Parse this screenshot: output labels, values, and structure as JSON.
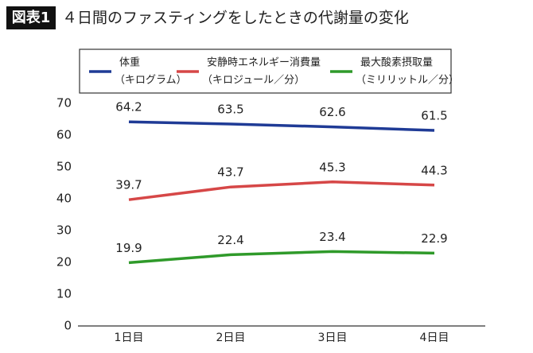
{
  "chart_data": {
    "type": "line",
    "label": "図表1",
    "title": "４日間のファスティングをしたときの代謝量の変化",
    "categories": [
      "1日目",
      "2日目",
      "3日目",
      "4日目"
    ],
    "series": [
      {
        "name": "体重",
        "unit": "（キログラム）",
        "color": "#1f3b96",
        "values": [
          64.2,
          63.5,
          62.6,
          61.5
        ]
      },
      {
        "name": "安静時エネルギー消費量",
        "unit": "（キロジュール／分）",
        "color": "#d64747",
        "values": [
          39.7,
          43.7,
          45.3,
          44.3
        ]
      },
      {
        "name": "最大酸素摂取量",
        "unit": "（ミリリットル／分）",
        "color": "#2f9a2a",
        "values": [
          19.9,
          22.4,
          23.4,
          22.9
        ]
      }
    ],
    "ylim": [
      0,
      70
    ],
    "yticks": [
      0,
      10,
      20,
      30,
      40,
      50,
      60,
      70
    ],
    "grid": false
  }
}
